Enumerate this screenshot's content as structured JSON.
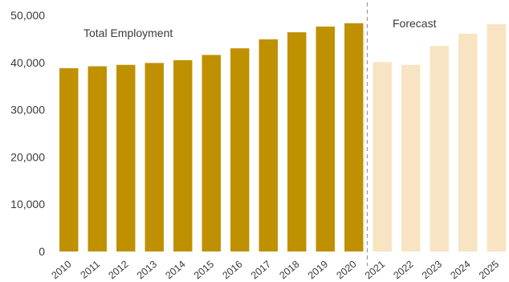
{
  "chart_data": {
    "type": "bar",
    "title": "",
    "xlabel": "",
    "ylabel": "",
    "ylim": [
      0,
      50000
    ],
    "yticks": [
      0,
      10000,
      20000,
      30000,
      40000,
      50000
    ],
    "ytick_labels": [
      "0",
      "10,000",
      "20,000",
      "30,000",
      "40,000",
      "50,000"
    ],
    "grid": false,
    "categories": [
      "2010",
      "2011",
      "2012",
      "2013",
      "2014",
      "2015",
      "2016",
      "2017",
      "2018",
      "2019",
      "2020",
      "2021",
      "2022",
      "2023",
      "2024",
      "2025"
    ],
    "series": [
      {
        "name": "Total Employment",
        "values": [
          38800,
          39200,
          39500,
          39900,
          40500,
          41600,
          43000,
          44900,
          46400,
          47600,
          48300,
          40100,
          39500,
          43500,
          46100,
          48100
        ]
      }
    ],
    "forecast_start_index": 11,
    "colors": {
      "actual": "#bf9000",
      "forecast": "#f8e4c2",
      "divider": "#999999"
    },
    "annotations": {
      "actual_label": "Total Employment",
      "forecast_label": "Forecast"
    }
  }
}
